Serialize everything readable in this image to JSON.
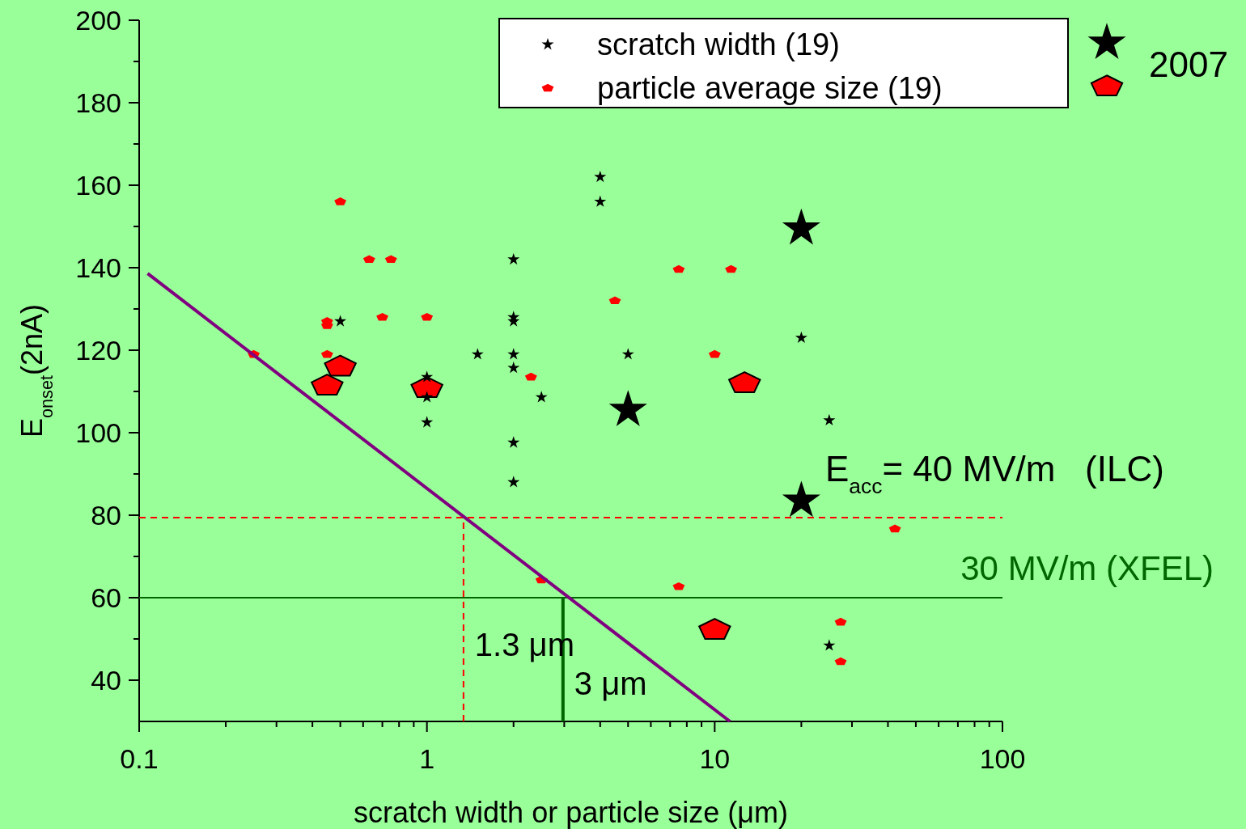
{
  "chart_data": {
    "type": "scatter",
    "xlabel": "scratch width or particle size (μm)",
    "ylabel": "E$_{onset}$(2nA)",
    "log": "x",
    "xlim": [
      0.1,
      100
    ],
    "ylim": [
      30,
      200
    ],
    "xticks": [
      0.1,
      {
        "value": 0.2,
        "label": null
      },
      {
        "value": 0.3,
        "label": null
      },
      {
        "value": 0.4,
        "label": null
      },
      {
        "value": 0.5,
        "label": null
      },
      {
        "value": 0.6,
        "label": null
      },
      {
        "value": 0.7,
        "label": null
      },
      {
        "value": 0.8,
        "label": null
      },
      {
        "value": 0.9,
        "label": null
      },
      1,
      {
        "value": 2,
        "label": null
      },
      {
        "value": 3,
        "label": null
      },
      {
        "value": 4,
        "label": null
      },
      {
        "value": 5,
        "label": null
      },
      {
        "value": 6,
        "label": null
      },
      {
        "value": 7,
        "label": null
      },
      {
        "value": 8,
        "label": null
      },
      {
        "value": 9,
        "label": null
      },
      10,
      {
        "value": 20,
        "label": null
      },
      {
        "value": 30,
        "label": null
      },
      {
        "value": 40,
        "label": null
      },
      {
        "value": 50,
        "label": null
      },
      {
        "value": 60,
        "label": null
      },
      {
        "value": 70,
        "label": null
      },
      {
        "value": 80,
        "label": null
      },
      {
        "value": 90,
        "label": null
      },
      100
    ],
    "yticks": [
      40,
      {
        "value": 50,
        "label": null
      },
      60,
      {
        "value": 70,
        "label": null
      },
      80,
      {
        "value": 90,
        "label": null
      },
      100,
      {
        "value": 110,
        "label": null
      },
      120,
      {
        "value": 130,
        "label": null
      },
      140,
      {
        "value": 150,
        "label": null
      },
      160,
      {
        "value": 170,
        "label": null
      },
      180,
      {
        "value": 190,
        "label": null
      },
      200
    ],
    "grid": false,
    "legend": "top",
    "series": [
      {
        "name": "scratch width (19)",
        "color": "#000000",
        "marker": "star",
        "x": [
          0.5,
          1,
          1,
          1,
          1.5,
          2,
          2,
          2,
          2,
          2,
          2,
          2,
          2.5,
          4,
          4,
          5,
          20,
          25,
          25
        ],
        "values": [
          127,
          113.5,
          108.6,
          102.5,
          119,
          142,
          128,
          127,
          119,
          115.7,
          97.6,
          88,
          108.6,
          162,
          156,
          119,
          123,
          103,
          48.4
        ]
      },
      {
        "name": "particle average size (19)",
        "color": "#ff0000",
        "x": [
          0.25,
          0.45,
          0.45,
          0.45,
          0.5,
          0.63,
          0.75,
          0.7,
          1,
          2.3,
          2.5,
          4.5,
          7.5,
          7.5,
          10,
          11.4,
          27.4,
          27.4,
          42.3
        ],
        "values": [
          119,
          127,
          126,
          119,
          156,
          142,
          142,
          128,
          128,
          113.5,
          64.3,
          132,
          139.6,
          62.7,
          119,
          139.6,
          54.1,
          44.5,
          76.7
        ]
      },
      {
        "name": "2007",
        "color": "#000000",
        "marker": "star",
        "x": [
          5,
          20,
          20
        ],
        "values": [
          105.5,
          149.5,
          83.5
        ]
      },
      {
        "color": "#ff0000",
        "x": [
          0.45,
          0.5,
          1,
          12.7,
          10
        ],
        "values": [
          111.4,
          116,
          110.8,
          112,
          52.2
        ]
      },
      {
        "type": "line",
        "color": "#800080",
        "x": [
          0.107,
          11.3
        ],
        "values": [
          138.6,
          30
        ]
      },
      {
        "type": "line",
        "color": "#ff0000",
        "line_style": "dashed",
        "x": [
          1.34,
          1.34
        ],
        "values": [
          30,
          79.4
        ]
      },
      {
        "type": "line",
        "color": "#006600",
        "x": [
          2.97,
          2.97
        ],
        "values": [
          30,
          60
        ]
      }
    ],
    "ref_lines": [
      {
        "axis": "y",
        "value": 79.4,
        "color": "#ff0000",
        "line_style": "dashed"
      },
      {
        "axis": "y",
        "value": 60,
        "label": "30 MV/m (XFEL)",
        "color": "#006600"
      }
    ],
    "annotations": [
      "E$_{acc}$= 40 MV/m   (ILC)",
      {
        "text": "1.3 μm",
        "x": 1.34,
        "y": 48.6
      },
      {
        "text": "3 μm",
        "x": 2.97,
        "y": 39.2
      }
    ]
  }
}
